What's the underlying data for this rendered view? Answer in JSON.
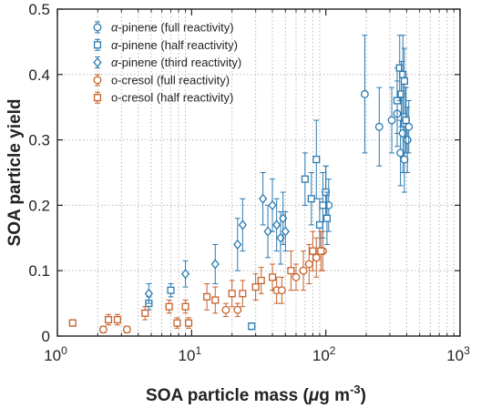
{
  "chart_data": {
    "type": "scatter",
    "xscale": "log",
    "xlim": [
      1,
      1000
    ],
    "ylim": [
      0,
      0.5
    ],
    "xlabel": {
      "main": "SOA particle mass (",
      "mu": "μ",
      "unit": "g m",
      "sup": "-3",
      "close": ")"
    },
    "ylabel": "SOA particle yield",
    "grid": {
      "x_minor_dotted": true,
      "y_major_dotted": true
    },
    "legend_placement": "top-left",
    "xticks": [
      {
        "value": 1,
        "base": "10",
        "exp": "0"
      },
      {
        "value": 10,
        "base": "10",
        "exp": "1"
      },
      {
        "value": 100,
        "base": "10",
        "exp": "2"
      },
      {
        "value": 1000,
        "base": "10",
        "exp": "3"
      }
    ],
    "yticks": [
      {
        "value": 0,
        "label": "0"
      },
      {
        "value": 0.1,
        "label": "0.1"
      },
      {
        "value": 0.2,
        "label": "0.2"
      },
      {
        "value": 0.3,
        "label": "0.3"
      },
      {
        "value": 0.4,
        "label": "0.4"
      },
      {
        "value": 0.5,
        "label": "0.5"
      }
    ],
    "colors": {
      "blue": "#2a7ab0",
      "orange": "#c8602a"
    },
    "series": [
      {
        "name": "α-pinene (full reactivity)",
        "name_greek": "α",
        "name_rest": "-pinene (full reactivity)",
        "marker": "circle",
        "color": "#2a7ab0",
        "points": [
          [
            195,
            0.37,
            0.09
          ],
          [
            250,
            0.32,
            0.06
          ],
          [
            310,
            0.33,
            0.05
          ],
          [
            340,
            0.34,
            0.05
          ],
          [
            360,
            0.28,
            0.05
          ],
          [
            375,
            0.31,
            0.06
          ],
          [
            385,
            0.27,
            0.05
          ],
          [
            395,
            0.33,
            0.05
          ],
          [
            405,
            0.3,
            0.05
          ],
          [
            415,
            0.32,
            0.04
          ],
          [
            100,
            0.22,
            0.04
          ],
          [
            105,
            0.2,
            0.04
          ]
        ]
      },
      {
        "name": "α-pinene (half reactivity)",
        "name_greek": "α",
        "name_rest": "-pinene (half reactivity)",
        "marker": "square",
        "color": "#2a7ab0",
        "points": [
          [
            4.8,
            0.05,
            0.01
          ],
          [
            7.0,
            0.07,
            0.01
          ],
          [
            28,
            0.015,
            0.005
          ],
          [
            70,
            0.24,
            0.04
          ],
          [
            78,
            0.21,
            0.04
          ],
          [
            85,
            0.27,
            0.06
          ],
          [
            90,
            0.17,
            0.04
          ],
          [
            95,
            0.2,
            0.05
          ],
          [
            100,
            0.22,
            0.04
          ],
          [
            102,
            0.18,
            0.04
          ],
          [
            340,
            0.36,
            0.05
          ],
          [
            355,
            0.41,
            0.05
          ],
          [
            365,
            0.37,
            0.05
          ],
          [
            375,
            0.4,
            0.06
          ],
          [
            385,
            0.39,
            0.05
          ],
          [
            395,
            0.33,
            0.05
          ]
        ]
      },
      {
        "name": "α-pinene (third reactivity)",
        "name_greek": "α",
        "name_rest": "-pinene (third reactivity)",
        "marker": "diamond",
        "color": "#2a7ab0",
        "points": [
          [
            4.8,
            0.065,
            0.015
          ],
          [
            9.0,
            0.095,
            0.02
          ],
          [
            15,
            0.11,
            0.03
          ],
          [
            22,
            0.14,
            0.04
          ],
          [
            24,
            0.17,
            0.04
          ],
          [
            34,
            0.21,
            0.04
          ],
          [
            37,
            0.16,
            0.04
          ],
          [
            40,
            0.2,
            0.04
          ],
          [
            43,
            0.17,
            0.04
          ],
          [
            46,
            0.15,
            0.04
          ],
          [
            48,
            0.18,
            0.04
          ],
          [
            50,
            0.16,
            0.03
          ]
        ]
      },
      {
        "name": "o-cresol (full reactivity)",
        "marker": "circle",
        "color": "#c8602a",
        "points": [
          [
            2.2,
            0.01,
            0.005
          ],
          [
            3.3,
            0.01,
            0.005
          ],
          [
            18,
            0.04,
            0.01
          ],
          [
            22,
            0.04,
            0.01
          ],
          [
            43,
            0.07,
            0.02
          ],
          [
            47,
            0.07,
            0.02
          ],
          [
            60,
            0.09,
            0.02
          ],
          [
            68,
            0.1,
            0.03
          ],
          [
            75,
            0.11,
            0.03
          ],
          [
            85,
            0.12,
            0.03
          ],
          [
            95,
            0.13,
            0.03
          ]
        ]
      },
      {
        "name": "o-cresol (half reactivity)",
        "marker": "square",
        "color": "#c8602a",
        "points": [
          [
            1.3,
            0.02,
            0.005
          ],
          [
            2.4,
            0.025,
            0.008
          ],
          [
            2.8,
            0.025,
            0.008
          ],
          [
            4.5,
            0.035,
            0.01
          ],
          [
            6.8,
            0.045,
            0.01
          ],
          [
            7.8,
            0.02,
            0.008
          ],
          [
            9.0,
            0.045,
            0.01
          ],
          [
            9.5,
            0.02,
            0.008
          ],
          [
            13,
            0.06,
            0.02
          ],
          [
            15,
            0.055,
            0.02
          ],
          [
            20,
            0.065,
            0.02
          ],
          [
            24,
            0.065,
            0.02
          ],
          [
            30,
            0.075,
            0.02
          ],
          [
            33,
            0.085,
            0.02
          ],
          [
            40,
            0.09,
            0.02
          ],
          [
            55,
            0.1,
            0.03
          ],
          [
            80,
            0.13,
            0.03
          ],
          [
            92,
            0.13,
            0.03
          ]
        ]
      }
    ]
  }
}
